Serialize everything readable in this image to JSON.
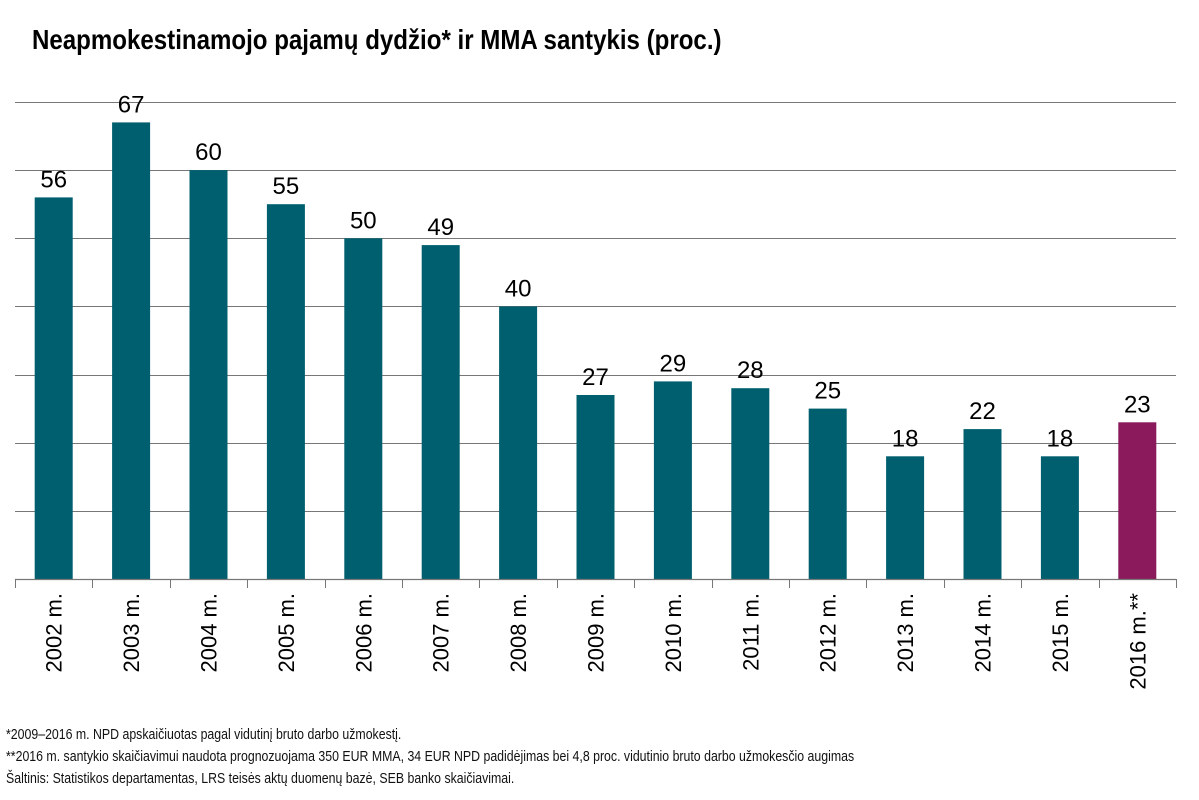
{
  "colors": {
    "bar": "#005f6e",
    "highlight": "#8b1a5c",
    "grid": "#777777",
    "text": "#000000"
  },
  "footnotes": [
    "*2009–2016 m. NPD apskaičiuotas pagal vidutinį bruto darbo užmokestį.",
    "**2016 m. santykio skaičiavimui naudota prognozuojama 350 EUR MMA, 34 EUR NPD padidėjimas bei 4,8 proc. vidutinio bruto darbo užmokesčio augimas",
    "Šaltinis: Statistikos departamentas, LRS teisės aktų duomenų bazė, SEB banko skaičiavimai."
  ],
  "chart_data": {
    "type": "bar",
    "title": "Neapmokestinamojo pajamų dydžio* ir MMA santykis (proc.)",
    "categories": [
      "2002 m.",
      "2003 m.",
      "2004 m.",
      "2005 m.",
      "2006 m.",
      "2007 m.",
      "2008 m.",
      "2009 m.",
      "2010 m.",
      "2011 m.",
      "2012 m.",
      "2013 m.",
      "2014 m.",
      "2015 m.",
      "2016 m.**"
    ],
    "values": [
      56,
      67,
      60,
      55,
      50,
      49,
      40,
      27,
      29,
      28,
      25,
      18,
      22,
      18,
      23
    ],
    "highlight_index": 14,
    "ylim": [
      0,
      70
    ],
    "y_gridlines": [
      0,
      10,
      20,
      30,
      40,
      50,
      60,
      70
    ],
    "grid": true,
    "y_tick_labels_shown": false,
    "data_labels": true,
    "xlabel": "",
    "ylabel": ""
  }
}
